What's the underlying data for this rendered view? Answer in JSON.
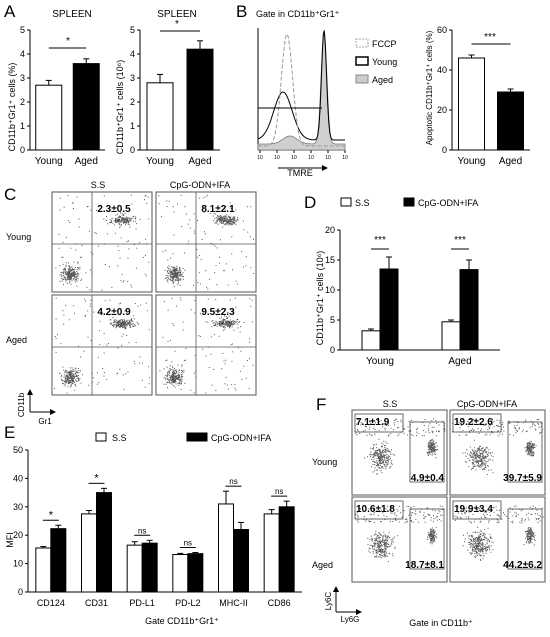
{
  "panels": {
    "A": {
      "label": "A",
      "left": {
        "title": "SPLEEN",
        "ylabel": "CD11b⁺Gr1⁺ cells (%)",
        "sig": "*"
      },
      "right": {
        "title": "SPLEEN",
        "ylabel": "CD11b⁺Gr1⁺ cells (10⁶)",
        "sig": "*"
      }
    },
    "B": {
      "label": "B",
      "hist_title": "Gate in CD11b⁺Gr1⁺",
      "xlabel": "TMRE",
      "legend": [
        "FCCP",
        "Young",
        "Aged"
      ],
      "bar_ylabel": "Apoptotic CD11b⁺Gr1⁺ cells (%)",
      "sig": "***"
    },
    "C": {
      "label": "C",
      "col_titles": [
        "S.S",
        "CpG-ODN+IFA"
      ],
      "row_labels": [
        "Young",
        "Aged"
      ],
      "values": [
        "2.3±0.5",
        "8.1±2.1",
        "4.2±0.9",
        "9.5±2.3"
      ],
      "axis_y": "CD11b",
      "axis_x": "Gr1"
    },
    "D": {
      "label": "D",
      "legend": [
        "S.S",
        "CpG-ODN+IFA"
      ],
      "ylabel": "CD11b⁺Gr1⁺ cells (10⁶)",
      "sig": [
        "***",
        "***"
      ]
    },
    "E": {
      "label": "E",
      "legend": [
        "S.S",
        "CpG-ODN+IFA"
      ],
      "ylabel": "MFI",
      "xtitle": "Gate CD11b⁺Gr1⁺",
      "sig": [
        "*",
        "*",
        "ns",
        "ns",
        "ns",
        "ns"
      ]
    },
    "F": {
      "label": "F",
      "col_titles": [
        "S.S",
        "CpG-ODN+IFA"
      ],
      "row_labels": [
        "Young",
        "Aged"
      ],
      "values_top": [
        "7.1±1.9",
        "19.2±2.6",
        "10.6±1.8",
        "19.9±3.4"
      ],
      "values_bottom": [
        "4.9±0.4",
        "39.7±5.9",
        "18.7±8.1",
        "44.2±6.2"
      ],
      "axis_y": "Ly6C",
      "axis_x": "Ly6G",
      "footer": "Gate in CD11b⁺"
    }
  },
  "chart_data": [
    {
      "type": "bar",
      "title": "SPLEEN",
      "categories": [
        "Young",
        "Aged"
      ],
      "values": [
        2.7,
        3.6
      ],
      "errors": [
        0.2,
        0.2
      ],
      "ylabel": "CD11b⁺Gr1⁺ cells (%)",
      "ylim": [
        0,
        5
      ],
      "yticks": [
        0,
        1,
        2,
        3,
        4,
        5
      ],
      "colors": [
        "#ffffff",
        "#000000"
      ]
    },
    {
      "type": "bar",
      "title": "SPLEEN",
      "categories": [
        "Young",
        "Aged"
      ],
      "values": [
        2.8,
        4.2
      ],
      "errors": [
        0.35,
        0.35
      ],
      "ylabel": "CD11b⁺Gr1⁺ cells (10⁶)",
      "ylim": [
        0,
        5
      ],
      "yticks": [
        0,
        1,
        2,
        3,
        4,
        5
      ],
      "colors": [
        "#ffffff",
        "#000000"
      ]
    },
    {
      "type": "bar",
      "categories": [
        "Young",
        "Aged"
      ],
      "values": [
        46,
        29
      ],
      "errors": [
        1.5,
        1.5
      ],
      "ylabel": "Apoptotic CD11b⁺Gr1⁺ cells (%)",
      "ylim": [
        0,
        60
      ],
      "yticks": [
        0,
        20,
        40,
        60
      ],
      "colors": [
        "#ffffff",
        "#000000"
      ]
    },
    {
      "type": "bar",
      "categories": [
        "Young",
        "Aged"
      ],
      "series": [
        {
          "name": "S.S",
          "values": [
            3.2,
            4.7
          ],
          "errors": [
            0.3,
            0.3
          ]
        },
        {
          "name": "CpG-ODN+IFA",
          "values": [
            13.5,
            13.4
          ],
          "errors": [
            2.0,
            1.6
          ]
        }
      ],
      "ylabel": "CD11b⁺Gr1⁺ cells (10⁶)",
      "ylim": [
        0,
        20
      ],
      "yticks": [
        0,
        5,
        10,
        15,
        20
      ]
    },
    {
      "type": "bar",
      "categories": [
        "CD124",
        "CD31",
        "PD-L1",
        "PD-L2",
        "MHC-II",
        "CD86"
      ],
      "series": [
        {
          "name": "S.S",
          "values": [
            15.5,
            27.5,
            16.5,
            13.2,
            31,
            27.5
          ],
          "errors": [
            0.5,
            1.2,
            1.2,
            0.4,
            4.5,
            1.5
          ]
        },
        {
          "name": "CpG-ODN+IFA",
          "values": [
            22.3,
            35,
            17.2,
            13.5,
            22,
            30
          ],
          "errors": [
            1.2,
            1.5,
            1.0,
            0.4,
            2.5,
            2.0
          ]
        }
      ],
      "ylabel": "MFI",
      "xlabel": "Gate CD11b⁺Gr1⁺",
      "ylim": [
        0,
        50
      ],
      "yticks": [
        0,
        10,
        20,
        30,
        40,
        50
      ]
    }
  ]
}
